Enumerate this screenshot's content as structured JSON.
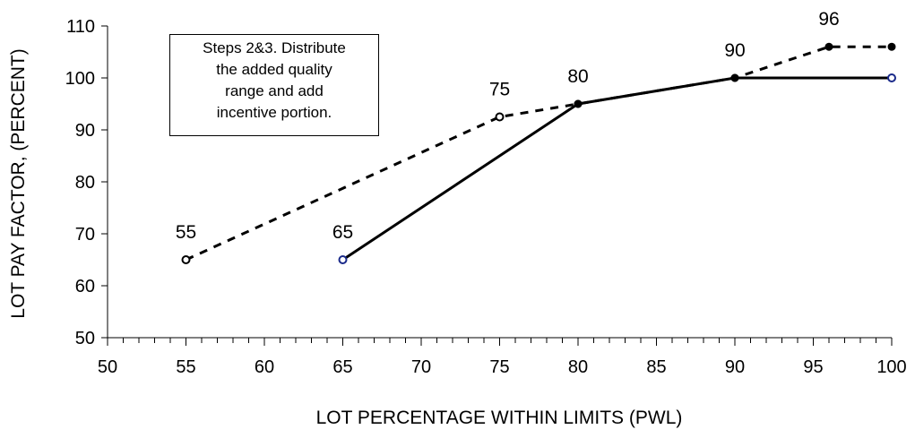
{
  "chart_data": {
    "type": "line",
    "xlabel": "LOT PERCENTAGE  WITHIN LIMITS (PWL)",
    "ylabel": "LOT PAY FACTOR, (PERCENT)",
    "xlim": [
      50,
      100
    ],
    "ylim": [
      50,
      110
    ],
    "x_ticks": [
      50,
      55,
      60,
      65,
      70,
      75,
      80,
      85,
      90,
      95,
      100
    ],
    "y_ticks": [
      50,
      60,
      70,
      80,
      90,
      100,
      110
    ],
    "x_minor_step": 1,
    "grid": false,
    "legend": "none",
    "annotation_lines": [
      "Steps 2&3.  Distribute",
      "the added quality",
      "range and add",
      "incentive portion."
    ],
    "series": [
      {
        "style": "dashed",
        "points": [
          {
            "x": 55,
            "y": 65,
            "label": "55"
          },
          {
            "x": 75,
            "y": 92.5,
            "label": "75"
          },
          {
            "x": 80,
            "y": 95,
            "label": ""
          },
          {
            "x": 90,
            "y": 100,
            "label": ""
          },
          {
            "x": 96,
            "y": 106,
            "label": "96"
          },
          {
            "x": 100,
            "y": 106,
            "label": ""
          }
        ]
      },
      {
        "style": "solid",
        "points": [
          {
            "x": 65,
            "y": 65,
            "label": "65"
          },
          {
            "x": 80,
            "y": 95,
            "label": "80"
          },
          {
            "x": 90,
            "y": 100,
            "label": "90"
          },
          {
            "x": 100,
            "y": 100,
            "label": ""
          }
        ]
      }
    ]
  }
}
